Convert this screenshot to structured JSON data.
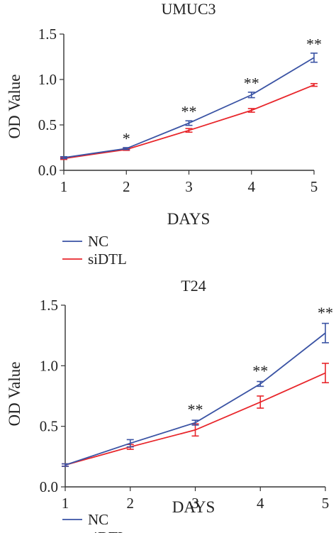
{
  "chart_data": [
    {
      "type": "line",
      "title": "UMUC3",
      "xlabel": "DAYS",
      "ylabel": "OD Value",
      "x": [
        1,
        2,
        3,
        4,
        5
      ],
      "x_ticks": [
        "1",
        "2",
        "3",
        "4",
        "5"
      ],
      "ylim": [
        0,
        1.5
      ],
      "y_ticks": [
        "0.0",
        "0.5",
        "1.0",
        "1.5"
      ],
      "grid": false,
      "legend_position": "bottom-left",
      "series": [
        {
          "name": "NC",
          "color": "#3a53a4",
          "values": [
            0.14,
            0.24,
            0.52,
            0.83,
            1.24
          ],
          "errors": [
            0.01,
            0.01,
            0.025,
            0.03,
            0.05
          ]
        },
        {
          "name": "siDTL",
          "color": "#e8262b",
          "values": [
            0.13,
            0.23,
            0.44,
            0.66,
            0.94
          ],
          "errors": [
            0.01,
            0.01,
            0.02,
            0.02,
            0.015
          ]
        }
      ],
      "annotations": [
        {
          "x": 2,
          "y": 0.26,
          "text": "*"
        },
        {
          "x": 3,
          "y": 0.56,
          "text": "**"
        },
        {
          "x": 4,
          "y": 0.87,
          "text": "**"
        },
        {
          "x": 5,
          "y": 1.3,
          "text": "**"
        }
      ]
    },
    {
      "type": "line",
      "title": "T24",
      "xlabel": "DAYS",
      "ylabel": "OD Value",
      "x": [
        1,
        2,
        3,
        4,
        5
      ],
      "x_ticks": [
        "1",
        "2",
        "3",
        "4",
        "5"
      ],
      "ylim": [
        0,
        1.5
      ],
      "y_ticks": [
        "0.0",
        "0.5",
        "1.0",
        "1.5"
      ],
      "grid": false,
      "legend_position": "bottom-left",
      "series": [
        {
          "name": "NC",
          "color": "#3a53a4",
          "values": [
            0.18,
            0.36,
            0.53,
            0.85,
            1.27
          ],
          "errors": [
            0.01,
            0.03,
            0.02,
            0.02,
            0.08
          ]
        },
        {
          "name": "siDTL",
          "color": "#e8262b",
          "values": [
            0.18,
            0.33,
            0.47,
            0.7,
            0.94
          ],
          "errors": [
            0.01,
            0.02,
            0.05,
            0.05,
            0.08
          ]
        }
      ],
      "annotations": [
        {
          "x": 3,
          "y": 0.57,
          "text": "**"
        },
        {
          "x": 4,
          "y": 0.89,
          "text": "**"
        },
        {
          "x": 5,
          "y": 1.37,
          "text": "**"
        }
      ]
    }
  ]
}
